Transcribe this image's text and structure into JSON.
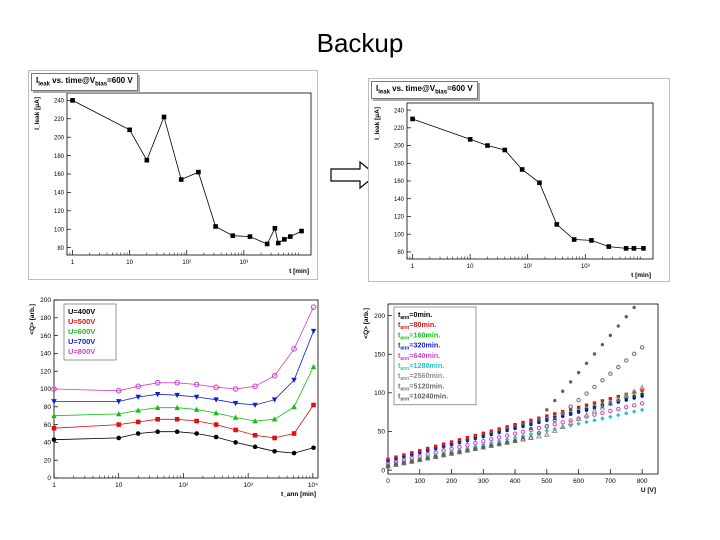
{
  "slide": {
    "title": "Backup"
  },
  "chart_data": [
    {
      "id": "tl",
      "type": "line",
      "title": "I_leak vs. time@V_bias=600 V",
      "title_parts": {
        "a": "I",
        "a_sub": "leak",
        "b": " vs. time@V",
        "b_sub": "bias",
        "c": "=600 V"
      },
      "xlabel": "t [min]",
      "ylabel": "I_leak [μA]",
      "xscale": "log",
      "xlim": [
        0.8,
        15000
      ],
      "ylim": [
        72,
        248
      ],
      "yticks": [
        80,
        100,
        120,
        140,
        160,
        180,
        200,
        220,
        240
      ],
      "xticks": [
        {
          "v": 1,
          "label": "1"
        },
        {
          "v": 10,
          "label": "10"
        },
        {
          "v": 100,
          "label": "10²"
        },
        {
          "v": 1000,
          "label": "10³"
        }
      ],
      "series": [
        {
          "name": "Ileak",
          "color": "#000000",
          "marker": "square",
          "x": [
            1,
            10,
            20,
            40,
            80,
            160,
            320,
            640,
            1280,
            2560,
            3500,
            4000,
            5120,
            6500,
            10240
          ],
          "y": [
            240,
            208,
            175,
            222,
            154,
            162,
            103,
            93,
            92,
            84,
            101,
            85,
            89,
            92,
            98
          ]
        }
      ]
    },
    {
      "id": "tr",
      "type": "line",
      "title": "I_leak vs. time@V_bias=600 V",
      "title_parts": {
        "a": "I",
        "a_sub": "leak",
        "b": " vs. time@V",
        "b_sub": "bias",
        "c": "=600 V"
      },
      "xlabel": "t [min]",
      "ylabel": "I_leak [μA]",
      "xscale": "log",
      "xlim": [
        0.8,
        15000
      ],
      "ylim": [
        72,
        248
      ],
      "yticks": [
        80,
        100,
        120,
        140,
        160,
        180,
        200,
        220,
        240
      ],
      "xticks": [
        {
          "v": 1,
          "label": "1"
        },
        {
          "v": 10,
          "label": "10"
        },
        {
          "v": 100,
          "label": "10²"
        },
        {
          "v": 1000,
          "label": "10³"
        }
      ],
      "series": [
        {
          "name": "Ileak",
          "color": "#000000",
          "marker": "square",
          "x": [
            1,
            10,
            20,
            40,
            80,
            160,
            320,
            640,
            1280,
            2560,
            5120,
            7000,
            10240
          ],
          "y": [
            230,
            207,
            200,
            195,
            173,
            158,
            111,
            94,
            93,
            86,
            84,
            84,
            84
          ]
        }
      ]
    },
    {
      "id": "bl",
      "type": "line",
      "title": "",
      "xlabel": "t_ann [min]",
      "ylabel": "<Q> [arb.]",
      "xscale": "log",
      "xlim": [
        1,
        12000
      ],
      "ylim": [
        0,
        200
      ],
      "yticks": [
        0,
        20,
        40,
        60,
        80,
        100,
        120,
        140,
        160,
        180,
        200
      ],
      "xticks": [
        {
          "v": 1,
          "label": "1"
        },
        {
          "v": 10,
          "label": "10"
        },
        {
          "v": 100,
          "label": "10²"
        },
        {
          "v": 1000,
          "label": "10³"
        },
        {
          "v": 10000,
          "label": "10⁴"
        }
      ],
      "legend": "top-left",
      "series": [
        {
          "name": "U=400V",
          "color": "#000000",
          "marker": "circle",
          "x": [
            1,
            10,
            20,
            40,
            80,
            160,
            320,
            640,
            1280,
            2560,
            5120,
            10240
          ],
          "y": [
            43,
            45,
            50,
            52,
            52,
            50,
            46,
            40,
            35,
            30,
            28,
            34
          ]
        },
        {
          "name": "U=500V",
          "color": "#e01010",
          "marker": "square",
          "x": [
            1,
            10,
            20,
            40,
            80,
            160,
            320,
            640,
            1280,
            2560,
            5120,
            10240
          ],
          "y": [
            56,
            60,
            63,
            66,
            66,
            64,
            60,
            54,
            48,
            45,
            50,
            82
          ]
        },
        {
          "name": "U=600V",
          "color": "#10c010",
          "marker": "triangle",
          "x": [
            1,
            10,
            20,
            40,
            80,
            160,
            320,
            640,
            1280,
            2560,
            5120,
            10240
          ],
          "y": [
            70,
            72,
            76,
            79,
            79,
            77,
            73,
            68,
            64,
            66,
            80,
            125
          ]
        },
        {
          "name": "U=700V",
          "color": "#1020d0",
          "marker": "tri-down",
          "x": [
            1,
            10,
            20,
            40,
            80,
            160,
            320,
            640,
            1280,
            2560,
            5120,
            10240
          ],
          "y": [
            86,
            86,
            91,
            94,
            93,
            91,
            88,
            84,
            82,
            88,
            110,
            165
          ]
        },
        {
          "name": "U=800V",
          "color": "#d040d0",
          "marker": "open-circle",
          "x": [
            1,
            10,
            20,
            40,
            80,
            160,
            320,
            640,
            1280,
            2560,
            5120,
            10240
          ],
          "y": [
            100,
            98,
            103,
            107,
            107,
            105,
            102,
            100,
            103,
            115,
            145,
            192
          ]
        }
      ]
    },
    {
      "id": "br",
      "type": "scatter",
      "title": "",
      "xlabel": "U [V]",
      "ylabel": "<Q> [arb.]",
      "xscale": "linear",
      "xlim": [
        0,
        850
      ],
      "ylim": [
        -5,
        215
      ],
      "yticks": [
        0,
        50,
        100,
        150,
        200
      ],
      "xticks": [
        {
          "v": 0,
          "label": "0"
        },
        {
          "v": 100,
          "label": "100"
        },
        {
          "v": 200,
          "label": "200"
        },
        {
          "v": 300,
          "label": "300"
        },
        {
          "v": 400,
          "label": "400"
        },
        {
          "v": 500,
          "label": "500"
        },
        {
          "v": 600,
          "label": "600"
        },
        {
          "v": 700,
          "label": "700"
        },
        {
          "v": 800,
          "label": "800"
        }
      ],
      "legend": "top-left",
      "series": [
        {
          "name": "t_ann=0min.",
          "sub": "ann",
          "label_pre": "t",
          "label_post": "=0min.",
          "color": "#000000",
          "marker": "circle",
          "slope": 0.105,
          "offset": 12,
          "onset": 0,
          "extra": 0
        },
        {
          "name": "t_ann=80min.",
          "sub": "ann",
          "label_pre": "t",
          "label_post": "=80min.",
          "color": "#e01010",
          "marker": "square",
          "slope": 0.112,
          "offset": 14,
          "onset": 0,
          "extra": 0
        },
        {
          "name": "t_ann=160min.",
          "sub": "ann",
          "label_pre": "t",
          "label_post": "=160min.",
          "color": "#10c010",
          "marker": "triangle",
          "slope": 0.11,
          "offset": 12,
          "onset": 0,
          "extra": 0
        },
        {
          "name": "t_ann=320min.",
          "sub": "ann",
          "label_pre": "t",
          "label_post": "=320min.",
          "color": "#1020d0",
          "marker": "tri-down",
          "slope": 0.108,
          "offset": 11,
          "onset": 0,
          "extra": 0
        },
        {
          "name": "t_ann=640min.",
          "sub": "ann",
          "label_pre": "t",
          "label_post": "=640min.",
          "color": "#d040d0",
          "marker": "open-circle",
          "slope": 0.098,
          "offset": 8,
          "onset": 0,
          "extra": 0
        },
        {
          "name": "t_ann=1280min.",
          "sub": "ann",
          "label_pre": "t",
          "label_post": "=1280min.",
          "color": "#30c0c0",
          "marker": "diamond",
          "slope": 0.09,
          "offset": 6,
          "onset": 0,
          "extra": 0
        },
        {
          "name": "t_ann=2560min.",
          "sub": "ann",
          "label_pre": "t",
          "label_post": "=2560min.",
          "color": "#909090",
          "marker": "open-triangle",
          "slope": 0.082,
          "offset": 5,
          "onset": 500,
          "extra": 0.12
        },
        {
          "name": "t_ann=5120min.",
          "sub": "ann",
          "label_pre": "t",
          "label_post": "=5120min.",
          "color": "#707070",
          "marker": "open-circle",
          "slope": 0.082,
          "offset": 5,
          "onset": 460,
          "extra": 0.26
        },
        {
          "name": "t_ann=10240min.",
          "sub": "ann",
          "label_pre": "t",
          "label_post": "=10240min.",
          "color": "#606060",
          "marker": "circle",
          "slope": 0.082,
          "offset": 5,
          "onset": 420,
          "extra": 0.4
        }
      ],
      "x_points": [
        0,
        25,
        50,
        75,
        100,
        125,
        150,
        175,
        200,
        225,
        250,
        275,
        300,
        325,
        350,
        375,
        400,
        425,
        450,
        475,
        500,
        525,
        550,
        575,
        600,
        625,
        650,
        675,
        700,
        725,
        750,
        775,
        800
      ]
    }
  ]
}
